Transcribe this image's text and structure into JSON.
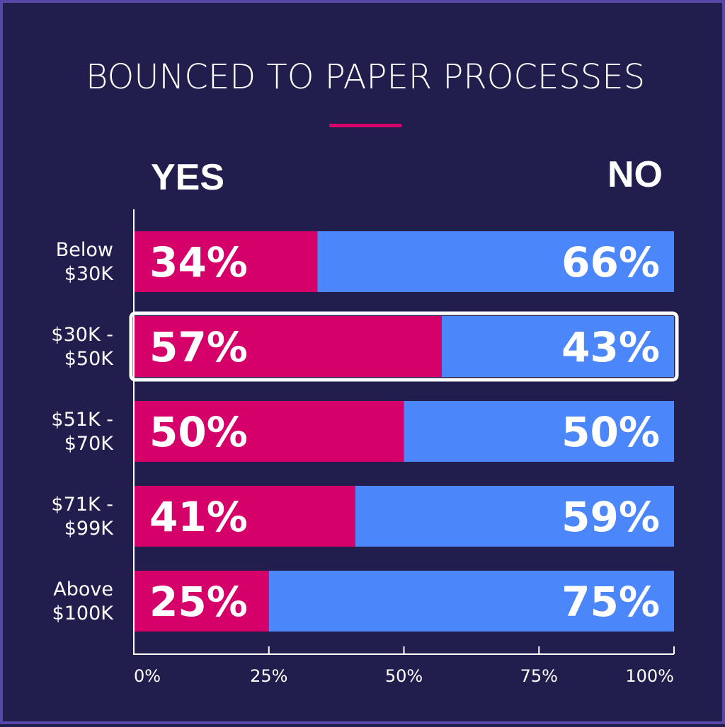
{
  "chart_data": {
    "type": "bar",
    "orientation": "horizontal",
    "stacked": true,
    "title": "BOUNCED TO PAPER PROCESSES",
    "left_header": "YES",
    "right_header": "NO",
    "categories": [
      [
        "Below",
        "$30K"
      ],
      [
        "$30K -",
        "$50K"
      ],
      [
        "$51K -",
        "$70K"
      ],
      [
        "$71K -",
        "$99K"
      ],
      [
        "Above",
        "$100K"
      ]
    ],
    "series": [
      {
        "name": "YES",
        "values": [
          34,
          57,
          50,
          41,
          25
        ],
        "color": "#d6006a"
      },
      {
        "name": "NO",
        "values": [
          66,
          43,
          50,
          59,
          75
        ],
        "color": "#4b86fb"
      }
    ],
    "value_labels": {
      "yes": [
        "34%",
        "57%",
        "50%",
        "41%",
        "25%"
      ],
      "no": [
        "66%",
        "43%",
        "50%",
        "59%",
        "75%"
      ]
    },
    "highlight_index": 1,
    "xlim": [
      0,
      100
    ],
    "xticks": [
      0,
      25,
      50,
      75,
      100
    ],
    "xtick_labels": [
      "0%",
      "25%",
      "50%",
      "75%",
      "100%"
    ],
    "accent_color": "#d6006a",
    "background_color": "#211e4d",
    "border_color": "#5747a8"
  }
}
